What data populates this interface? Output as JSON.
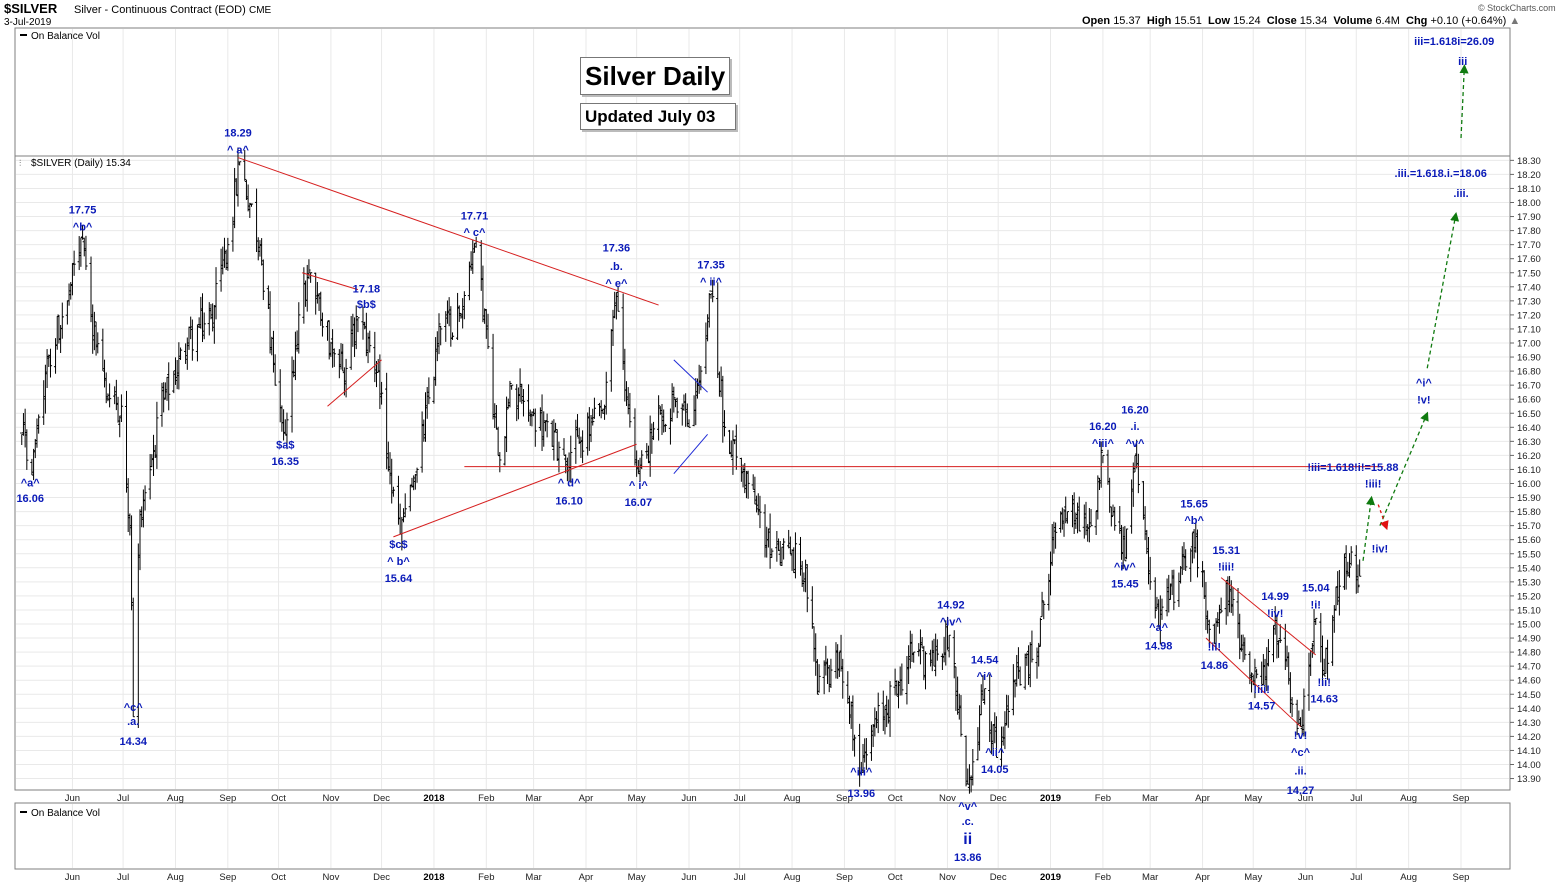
{
  "header": {
    "symbol": "$SILVER",
    "description": "Silver - Continuous Contract (EOD)",
    "exchange": "CME",
    "date": "3-Jul-2019",
    "ohlc_labels": [
      "Open",
      "High",
      "Low",
      "Close",
      "Volume",
      "Chg"
    ],
    "ohlc_values": [
      "15.37",
      "15.51",
      "15.24",
      "15.34",
      "6.4M",
      "+0.10 (+0.64%)"
    ],
    "brand": "© StockCharts.com"
  },
  "top_panel_label": "On Balance Vol",
  "price_panel_label": "$SILVER (Daily) 15.34",
  "bottom_panel_label": "On Balance Vol",
  "title_box": "Silver Daily",
  "subtitle_box": "Updated July 03",
  "colors": {
    "bars": "#000000",
    "annotation": "#0a1ab8",
    "trendline": "#d61f1f",
    "channel_blue": "#1f2bd6",
    "projection_green": "#0f7a0f",
    "projection_red": "#e01010"
  },
  "chart_data": {
    "type": "ohlc",
    "title": "$SILVER (Daily) 15.34",
    "ylim": [
      13.8,
      18.35
    ],
    "y_ticks": [
      "13.90",
      "14.00",
      "14.10",
      "14.20",
      "14.30",
      "14.40",
      "14.50",
      "14.60",
      "14.70",
      "14.80",
      "14.90",
      "15.00",
      "15.10",
      "15.20",
      "15.30",
      "15.40",
      "15.50",
      "15.60",
      "15.70",
      "15.80",
      "15.90",
      "16.00",
      "16.10",
      "16.20",
      "16.30",
      "16.40",
      "16.50",
      "16.60",
      "16.70",
      "16.80",
      "16.90",
      "17.00",
      "17.10",
      "17.20",
      "17.30",
      "17.40",
      "17.50",
      "17.60",
      "17.70",
      "17.80",
      "17.90",
      "18.00",
      "18.10",
      "18.20",
      "18.30"
    ],
    "x_ticks": [
      {
        "label": "Jun",
        "date": "2017-06-01"
      },
      {
        "label": "Jul",
        "date": "2017-07-01"
      },
      {
        "label": "Aug",
        "date": "2017-08-01"
      },
      {
        "label": "Sep",
        "date": "2017-09-01"
      },
      {
        "label": "Oct",
        "date": "2017-10-01"
      },
      {
        "label": "Nov",
        "date": "2017-11-01"
      },
      {
        "label": "Dec",
        "date": "2017-12-01"
      },
      {
        "label": "2018",
        "date": "2018-01-01",
        "bold": true
      },
      {
        "label": "Feb",
        "date": "2018-02-01"
      },
      {
        "label": "Mar",
        "date": "2018-03-01"
      },
      {
        "label": "Apr",
        "date": "2018-04-01"
      },
      {
        "label": "May",
        "date": "2018-05-01"
      },
      {
        "label": "Jun",
        "date": "2018-06-01"
      },
      {
        "label": "Jul",
        "date": "2018-07-01"
      },
      {
        "label": "Aug",
        "date": "2018-08-01"
      },
      {
        "label": "Sep",
        "date": "2018-09-01"
      },
      {
        "label": "Oct",
        "date": "2018-10-01"
      },
      {
        "label": "Nov",
        "date": "2018-11-01"
      },
      {
        "label": "Dec",
        "date": "2018-12-01"
      },
      {
        "label": "2019",
        "date": "2019-01-01",
        "bold": true
      },
      {
        "label": "Feb",
        "date": "2019-02-01"
      },
      {
        "label": "Mar",
        "date": "2019-03-01"
      },
      {
        "label": "Apr",
        "date": "2019-04-01"
      },
      {
        "label": "May",
        "date": "2019-05-01"
      },
      {
        "label": "Jun",
        "date": "2019-06-01"
      },
      {
        "label": "Jul",
        "date": "2019-07-01"
      },
      {
        "label": "Aug",
        "date": "2019-08-01"
      },
      {
        "label": "Sep",
        "date": "2019-09-01"
      }
    ],
    "price_path": [
      [
        "2017-05-02",
        16.35
      ],
      [
        "2017-05-08",
        16.06
      ],
      [
        "2017-05-18",
        16.9
      ],
      [
        "2017-05-29",
        17.3
      ],
      [
        "2017-06-06",
        17.75
      ],
      [
        "2017-06-12",
        17.2
      ],
      [
        "2017-06-22",
        16.6
      ],
      [
        "2017-06-30",
        16.55
      ],
      [
        "2017-07-05",
        15.7
      ],
      [
        "2017-07-07",
        14.34
      ],
      [
        "2017-07-11",
        15.8
      ],
      [
        "2017-07-25",
        16.6
      ],
      [
        "2017-08-08",
        17.0
      ],
      [
        "2017-08-22",
        17.2
      ],
      [
        "2017-09-01",
        17.7
      ],
      [
        "2017-09-08",
        18.29
      ],
      [
        "2017-09-20",
        17.7
      ],
      [
        "2017-09-29",
        16.7
      ],
      [
        "2017-10-05",
        16.35
      ],
      [
        "2017-10-13",
        17.2
      ],
      [
        "2017-10-20",
        17.5
      ],
      [
        "2017-11-01",
        17.0
      ],
      [
        "2017-11-08",
        16.8
      ],
      [
        "2017-11-17",
        17.18
      ],
      [
        "2017-11-29",
        16.8
      ],
      [
        "2017-12-05",
        16.1
      ],
      [
        "2017-12-12",
        15.64
      ],
      [
        "2017-12-22",
        16.1
      ],
      [
        "2018-01-05",
        17.1
      ],
      [
        "2018-01-17",
        17.2
      ],
      [
        "2018-01-25",
        17.71
      ],
      [
        "2018-02-01",
        17.1
      ],
      [
        "2018-02-08",
        16.2
      ],
      [
        "2018-02-16",
        16.7
      ],
      [
        "2018-03-01",
        16.5
      ],
      [
        "2018-03-19",
        16.2
      ],
      [
        "2018-03-29",
        16.3
      ],
      [
        "2018-04-11",
        16.5
      ],
      [
        "2018-04-19",
        17.36
      ],
      [
        "2018-04-25",
        16.6
      ],
      [
        "2018-05-02",
        16.07
      ],
      [
        "2018-05-15",
        16.5
      ],
      [
        "2018-05-24",
        16.6
      ],
      [
        "2018-06-01",
        16.4
      ],
      [
        "2018-06-08",
        16.8
      ],
      [
        "2018-06-14",
        17.35
      ],
      [
        "2018-06-22",
        16.4
      ],
      [
        "2018-07-03",
        16.1
      ],
      [
        "2018-07-17",
        15.6
      ],
      [
        "2018-07-31",
        15.5
      ],
      [
        "2018-08-09",
        15.4
      ],
      [
        "2018-08-16",
        14.5
      ],
      [
        "2018-08-29",
        14.8
      ],
      [
        "2018-09-11",
        13.96
      ],
      [
        "2018-09-20",
        14.3
      ],
      [
        "2018-10-04",
        14.6
      ],
      [
        "2018-10-12",
        14.8
      ],
      [
        "2018-10-24",
        14.7
      ],
      [
        "2018-11-02",
        14.92
      ],
      [
        "2018-11-13",
        13.86
      ],
      [
        "2018-11-23",
        14.54
      ],
      [
        "2018-11-30",
        14.05
      ],
      [
        "2018-12-10",
        14.6
      ],
      [
        "2018-12-24",
        14.8
      ],
      [
        "2019-01-02",
        15.6
      ],
      [
        "2019-01-11",
        15.8
      ],
      [
        "2019-01-25",
        15.7
      ],
      [
        "2019-02-01",
        16.2
      ],
      [
        "2019-02-07",
        15.8
      ],
      [
        "2019-02-14",
        15.45
      ],
      [
        "2019-02-20",
        16.2
      ],
      [
        "2019-03-01",
        15.3
      ],
      [
        "2019-03-06",
        14.98
      ],
      [
        "2019-03-19",
        15.4
      ],
      [
        "2019-03-26",
        15.65
      ],
      [
        "2019-04-02",
        15.2
      ],
      [
        "2019-04-08",
        14.86
      ],
      [
        "2019-04-15",
        15.31
      ],
      [
        "2019-04-24",
        14.85
      ],
      [
        "2019-05-06",
        14.57
      ],
      [
        "2019-05-13",
        14.99
      ],
      [
        "2019-05-22",
        14.6
      ],
      [
        "2019-05-29",
        14.27
      ],
      [
        "2019-06-03",
        14.7
      ],
      [
        "2019-06-07",
        15.04
      ],
      [
        "2019-06-12",
        14.63
      ],
      [
        "2019-06-18",
        15.1
      ],
      [
        "2019-06-24",
        15.5
      ],
      [
        "2019-07-03",
        15.34
      ]
    ],
    "last": {
      "open": 15.37,
      "high": 15.51,
      "low": 15.24,
      "close": 15.34
    }
  },
  "trendlines_red": [
    {
      "from": [
        "2017-09-07",
        18.32
      ],
      "to": [
        "2018-05-14",
        17.27
      ]
    },
    {
      "from": [
        "2017-10-15",
        17.5
      ],
      "to": [
        "2017-11-17",
        17.38
      ]
    },
    {
      "from": [
        "2017-10-30",
        16.55
      ],
      "to": [
        "2017-12-01",
        16.88
      ]
    },
    {
      "from": [
        "2017-12-08",
        15.62
      ],
      "to": [
        "2018-05-01",
        16.28
      ]
    },
    {
      "from": [
        "2018-01-19",
        16.12
      ],
      "to": [
        "2019-07-17",
        16.12
      ]
    },
    {
      "from": [
        "2019-04-12",
        15.33
      ],
      "to": [
        "2019-06-07",
        14.78
      ]
    },
    {
      "from": [
        "2019-04-03",
        14.9
      ],
      "to": [
        "2019-05-29",
        14.27
      ]
    }
  ],
  "trendlines_blue": [
    {
      "from": [
        "2018-05-23",
        16.88
      ],
      "to": [
        "2018-06-12",
        16.65
      ]
    },
    {
      "from": [
        "2018-05-23",
        16.07
      ],
      "to": [
        "2018-06-12",
        16.35
      ]
    }
  ],
  "projections_green": [
    {
      "from": [
        "2019-07-05",
        15.45
      ],
      "to": [
        "2019-07-10",
        15.9
      ]
    },
    {
      "from": [
        "2019-07-15",
        15.7
      ],
      "to": [
        "2019-08-12",
        16.5
      ]
    },
    {
      "from": [
        "2019-08-12",
        16.82
      ],
      "to": [
        "2019-08-29",
        17.92
      ]
    }
  ],
  "projection_red": {
    "from": [
      "2019-07-14",
      15.85
    ],
    "to": [
      "2019-07-19",
      15.68
    ]
  },
  "projection_top_green": {
    "from": [
      "2019-09-01",
      110
    ],
    "to": [
      "2019-09-03",
      58
    ]
  },
  "annotations": [
    {
      "text": "^a^",
      "date": "2017-05-07",
      "y": 15.98
    },
    {
      "text": "16.06",
      "date": "2017-05-07",
      "y": 15.87
    },
    {
      "text": "17.75",
      "date": "2017-06-07",
      "y": 17.92
    },
    {
      "text": "^b^",
      "date": "2017-06-07",
      "y": 17.8
    },
    {
      "text": "^c^",
      "date": "2017-07-07",
      "y": 14.38
    },
    {
      "text": ".a.",
      "date": "2017-07-07",
      "y": 14.28
    },
    {
      "text": "14.34",
      "date": "2017-07-07",
      "y": 14.14
    },
    {
      "text": "18.29",
      "date": "2017-09-07",
      "y": 18.47
    },
    {
      "text": "^ a^",
      "date": "2017-09-07",
      "y": 18.35
    },
    {
      "text": "$a$",
      "date": "2017-10-05",
      "y": 16.25
    },
    {
      "text": "16.35",
      "date": "2017-10-05",
      "y": 16.13
    },
    {
      "text": "17.18",
      "date": "2017-11-22",
      "y": 17.36
    },
    {
      "text": "$b$",
      "date": "2017-11-22",
      "y": 17.25
    },
    {
      "text": "$c$",
      "date": "2017-12-11",
      "y": 15.54
    },
    {
      "text": "^ b^",
      "date": "2017-12-11",
      "y": 15.42
    },
    {
      "text": "15.64",
      "date": "2017-12-11",
      "y": 15.3
    },
    {
      "text": "17.71",
      "date": "2018-01-25",
      "y": 17.88
    },
    {
      "text": "^ c^",
      "date": "2018-01-25",
      "y": 17.76
    },
    {
      "text": "^ d^",
      "date": "2018-03-22",
      "y": 15.98
    },
    {
      "text": "16.10",
      "date": "2018-03-22",
      "y": 15.85
    },
    {
      "text": "17.36",
      "date": "2018-04-19",
      "y": 17.65
    },
    {
      "text": ".b.",
      "date": "2018-04-19",
      "y": 17.52
    },
    {
      "text": "^ e^",
      "date": "2018-04-19",
      "y": 17.4
    },
    {
      "text": "^ i^",
      "date": "2018-05-02",
      "y": 15.96
    },
    {
      "text": "16.07",
      "date": "2018-05-02",
      "y": 15.84
    },
    {
      "text": "17.35",
      "date": "2018-06-14",
      "y": 17.53
    },
    {
      "text": "^ ii^",
      "date": "2018-06-14",
      "y": 17.41
    },
    {
      "text": "^iii^",
      "date": "2018-09-11",
      "y": 13.92
    },
    {
      "text": "13.96",
      "date": "2018-09-11",
      "y": 13.77
    },
    {
      "text": "14.92",
      "date": "2018-11-03",
      "y": 15.11
    },
    {
      "text": "^iv^",
      "date": "2018-11-03",
      "y": 14.99
    },
    {
      "text": "14.54",
      "date": "2018-11-23",
      "y": 14.72
    },
    {
      "text": "^i^",
      "date": "2018-11-23",
      "y": 14.6
    },
    {
      "text": "^ii^",
      "date": "2018-11-29",
      "y": 14.06
    },
    {
      "text": "14.05",
      "date": "2018-11-29",
      "y": 13.94
    },
    {
      "text": "16.20",
      "date": "2019-02-01",
      "y": 16.38
    },
    {
      "text": "^iii^",
      "date": "2019-02-01",
      "y": 16.26
    },
    {
      "text": "16.20",
      "date": "2019-02-20",
      "y": 16.5
    },
    {
      "text": ".i.",
      "date": "2019-02-20",
      "y": 16.38
    },
    {
      "text": "^v^",
      "date": "2019-02-20",
      "y": 16.26
    },
    {
      "text": "^iv^",
      "date": "2019-02-14",
      "y": 15.38
    },
    {
      "text": "15.45",
      "date": "2019-02-14",
      "y": 15.26
    },
    {
      "text": "^a^",
      "date": "2019-03-06",
      "y": 14.95
    },
    {
      "text": "14.98",
      "date": "2019-03-06",
      "y": 14.82
    },
    {
      "text": "15.65",
      "date": "2019-03-27",
      "y": 15.83
    },
    {
      "text": "^b^",
      "date": "2019-03-27",
      "y": 15.71
    },
    {
      "text": "!ii!",
      "date": "2019-04-08",
      "y": 14.81
    },
    {
      "text": "14.86",
      "date": "2019-04-08",
      "y": 14.68
    },
    {
      "text": "15.31",
      "date": "2019-04-15",
      "y": 15.5
    },
    {
      "text": "!iii!",
      "date": "2019-04-15",
      "y": 15.38
    },
    {
      "text": "!iii!",
      "date": "2019-05-06",
      "y": 14.51
    },
    {
      "text": "14.57",
      "date": "2019-05-06",
      "y": 14.39
    },
    {
      "text": "14.99",
      "date": "2019-05-14",
      "y": 15.17
    },
    {
      "text": "!iv!",
      "date": "2019-05-14",
      "y": 15.05
    },
    {
      "text": "!v!",
      "date": "2019-05-29",
      "y": 14.18
    },
    {
      "text": "^c^",
      "date": "2019-05-29",
      "y": 14.06
    },
    {
      "text": ".ii.",
      "date": "2019-05-29",
      "y": 13.93
    },
    {
      "text": "14.27",
      "date": "2019-05-29",
      "y": 13.79
    },
    {
      "text": "15.04",
      "date": "2019-06-07",
      "y": 15.23
    },
    {
      "text": "!i!",
      "date": "2019-06-07",
      "y": 15.11
    },
    {
      "text": "!ii!",
      "date": "2019-06-12",
      "y": 14.56
    },
    {
      "text": "14.63",
      "date": "2019-06-12",
      "y": 14.44
    },
    {
      "text": "!iii=1.618!i!=15.88",
      "date": "2019-06-29",
      "y": 16.09
    },
    {
      "text": "!iii!",
      "date": "2019-07-11",
      "y": 15.97
    },
    {
      "text": "!iv!",
      "date": "2019-07-15",
      "y": 15.51
    },
    {
      "text": "^i^",
      "date": "2019-08-10",
      "y": 16.69
    },
    {
      "text": "!v!",
      "date": "2019-08-10",
      "y": 16.57
    },
    {
      "text": ".iii.=1.618.i.=18.06",
      "date": "2019-08-20",
      "y": 18.18
    },
    {
      "text": ".iii.",
      "date": "2019-09-01",
      "y": 18.04
    }
  ],
  "annotations_top": [
    {
      "text": "iii=1.618i=26.09",
      "date": "2019-08-28",
      "y": 45
    },
    {
      "text": "iii",
      "date": "2019-09-02",
      "y": 65
    }
  ],
  "annotations_bottom": [
    {
      "text": "^v^",
      "date": "2018-11-13",
      "y": 810
    },
    {
      "text": ".c.",
      "date": "2018-11-13",
      "y": 825
    },
    {
      "text": "ii",
      "date": "2018-11-13",
      "y": 844,
      "big": true
    },
    {
      "text": "13.86",
      "date": "2018-11-13",
      "y": 861
    }
  ]
}
